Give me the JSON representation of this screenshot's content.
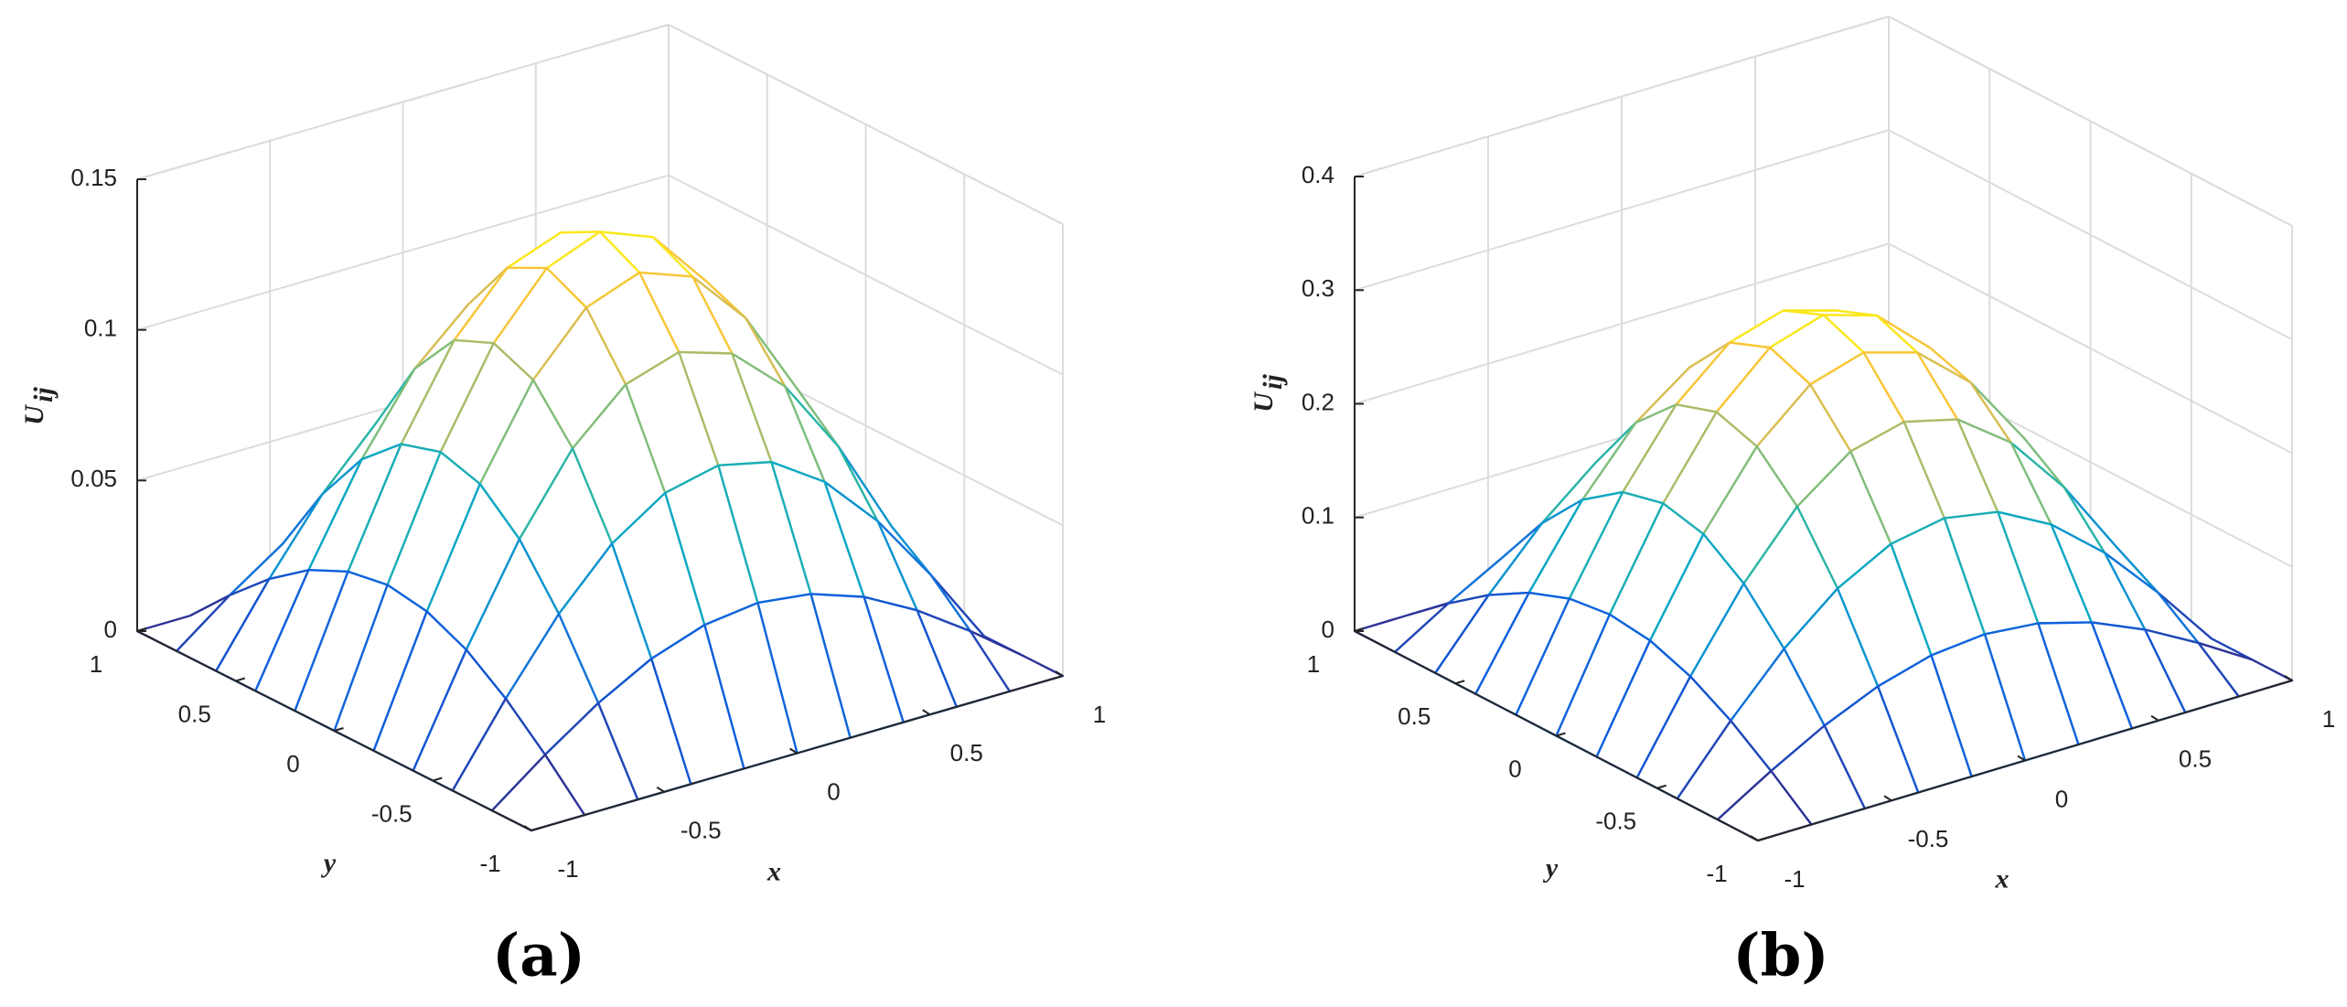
{
  "chart_data": [
    {
      "type": "surface",
      "label": "(a)",
      "xlabel": "x",
      "ylabel": "y",
      "zlabel": "U",
      "zlabel_sub": "ij",
      "x": [
        -1,
        -0.8,
        -0.6,
        -0.4,
        -0.2,
        0,
        0.2,
        0.4,
        0.6,
        0.8,
        1
      ],
      "y": [
        -1,
        -0.8,
        -0.6,
        -0.4,
        -0.2,
        0,
        0.2,
        0.4,
        0.6,
        0.8,
        1
      ],
      "z": [
        [
          0,
          0,
          0,
          0,
          0,
          0,
          0,
          0,
          0,
          0,
          0
        ],
        [
          0,
          0.0134,
          0.0254,
          0.035,
          0.0411,
          0.0433,
          0.0411,
          0.035,
          0.0254,
          0.0134,
          0
        ],
        [
          0,
          0.0254,
          0.0484,
          0.0666,
          0.0783,
          0.0823,
          0.0783,
          0.0666,
          0.0484,
          0.0254,
          0
        ],
        [
          0,
          0.035,
          0.0666,
          0.0916,
          0.1077,
          0.1133,
          0.1077,
          0.0916,
          0.0666,
          0.035,
          0
        ],
        [
          0,
          0.0411,
          0.0783,
          0.1077,
          0.1266,
          0.1331,
          0.1266,
          0.1077,
          0.0783,
          0.0411,
          0
        ],
        [
          0,
          0.0433,
          0.0823,
          0.1133,
          0.1331,
          0.14,
          0.1331,
          0.1133,
          0.0823,
          0.0433,
          0
        ],
        [
          0,
          0.0411,
          0.0783,
          0.1077,
          0.1266,
          0.1331,
          0.1266,
          0.1077,
          0.0783,
          0.0411,
          0
        ],
        [
          0,
          0.035,
          0.0666,
          0.0916,
          0.1077,
          0.1133,
          0.1077,
          0.0916,
          0.0666,
          0.035,
          0
        ],
        [
          0,
          0.0254,
          0.0484,
          0.0666,
          0.0783,
          0.0823,
          0.0783,
          0.0666,
          0.0484,
          0.0254,
          0
        ],
        [
          0,
          0.0134,
          0.0254,
          0.035,
          0.0411,
          0.0433,
          0.0411,
          0.035,
          0.0254,
          0.0134,
          0
        ],
        [
          0,
          0,
          0,
          0,
          0,
          0,
          0,
          0,
          0,
          0,
          0
        ]
      ],
      "xlim": [
        -1,
        1
      ],
      "ylim": [
        -1,
        1
      ],
      "zlim": [
        0,
        0.15
      ],
      "xticks": [
        -1,
        -0.5,
        0,
        0.5,
        1
      ],
      "yticks": [
        -1,
        -0.5,
        0,
        0.5,
        1
      ],
      "zticks": [
        0,
        0.05,
        0.1,
        0.15
      ],
      "grid": true,
      "colormap": [
        "#352a87",
        "#0f5cdd",
        "#1481d6",
        "#06a4ca",
        "#2eb7a4",
        "#87bf77",
        "#d1bb59",
        "#fec832",
        "#f9fb0e"
      ]
    },
    {
      "type": "surface",
      "label": "(b)",
      "xlabel": "x",
      "ylabel": "y",
      "zlabel": "U",
      "zlabel_sub": "ij",
      "x": [
        -1,
        -0.8,
        -0.6,
        -0.4,
        -0.2,
        0,
        0.2,
        0.4,
        0.6,
        0.8,
        1
      ],
      "y": [
        -1,
        -0.8,
        -0.6,
        -0.4,
        -0.2,
        0,
        0.2,
        0.4,
        0.6,
        0.8,
        1
      ],
      "z": [
        [
          0,
          0,
          0,
          0,
          0,
          0,
          0,
          0,
          0,
          0,
          0
        ],
        [
          0,
          0.0287,
          0.0545,
          0.075,
          0.0882,
          0.0927,
          0.0882,
          0.075,
          0.0545,
          0.0287,
          0
        ],
        [
          0,
          0.0545,
          0.1037,
          0.1427,
          0.1678,
          0.1764,
          0.1678,
          0.1427,
          0.1037,
          0.0545,
          0
        ],
        [
          0,
          0.075,
          0.1427,
          0.1964,
          0.2308,
          0.2427,
          0.2308,
          0.1964,
          0.1427,
          0.075,
          0
        ],
        [
          0,
          0.0882,
          0.1678,
          0.2308,
          0.2713,
          0.2853,
          0.2713,
          0.2308,
          0.1678,
          0.0882,
          0
        ],
        [
          0,
          0.0927,
          0.1764,
          0.2427,
          0.2853,
          0.3,
          0.2853,
          0.2427,
          0.1764,
          0.0927,
          0
        ],
        [
          0,
          0.0882,
          0.1678,
          0.2308,
          0.2713,
          0.2853,
          0.2713,
          0.2308,
          0.1678,
          0.0882,
          0
        ],
        [
          0,
          0.075,
          0.1427,
          0.1964,
          0.2308,
          0.2427,
          0.2308,
          0.1964,
          0.1427,
          0.075,
          0
        ],
        [
          0,
          0.0545,
          0.1037,
          0.1427,
          0.1678,
          0.1764,
          0.1678,
          0.1427,
          0.1037,
          0.0545,
          0
        ],
        [
          0,
          0.0287,
          0.0545,
          0.075,
          0.0882,
          0.0927,
          0.0882,
          0.075,
          0.0545,
          0.0287,
          0
        ],
        [
          0,
          0,
          0,
          0,
          0,
          0,
          0,
          0,
          0,
          0,
          0
        ]
      ],
      "xlim": [
        -1,
        1
      ],
      "ylim": [
        -1,
        1
      ],
      "zlim": [
        0,
        0.4
      ],
      "xticks": [
        -1,
        -0.5,
        0,
        0.5,
        1
      ],
      "yticks": [
        -1,
        -0.5,
        0,
        0.5,
        1
      ],
      "zticks": [
        0,
        0.1,
        0.2,
        0.3,
        0.4
      ],
      "grid": true,
      "colormap": [
        "#352a87",
        "#0f5cdd",
        "#1481d6",
        "#06a4ca",
        "#2eb7a4",
        "#87bf77",
        "#d1bb59",
        "#fec832",
        "#f9fb0e"
      ]
    }
  ]
}
